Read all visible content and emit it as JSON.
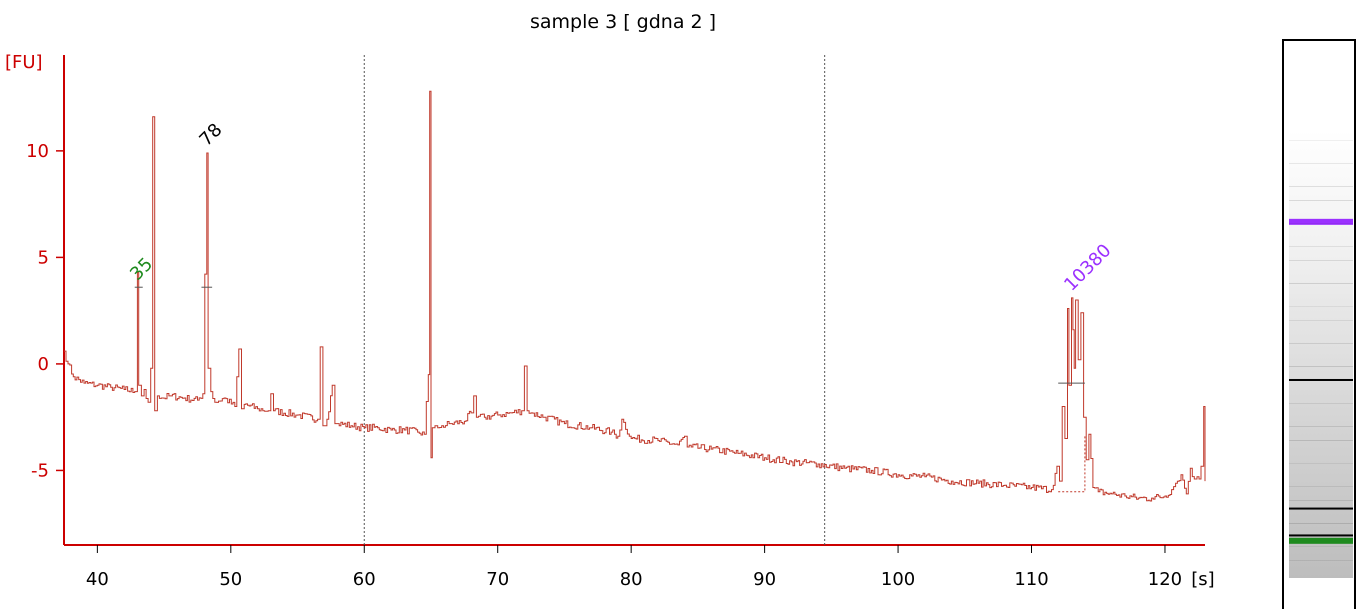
{
  "chart_data": {
    "type": "line",
    "title": "sample 3  [ gdna 2 ]",
    "ylabel": "[FU]",
    "xlabel": "[s]",
    "xlim": [
      37.5,
      123.0
    ],
    "ylim": [
      -8.5,
      14.5
    ],
    "x_ticks": [
      40,
      50,
      60,
      70,
      80,
      90,
      100,
      110,
      120
    ],
    "y_ticks": [
      10,
      5,
      0,
      -5
    ],
    "dotted_markers_x": [
      60,
      94.5
    ],
    "peak_labels": [
      {
        "text": "35",
        "x": 43.0,
        "y": 3.6,
        "color": "#1e8a1e"
      },
      {
        "text": "78",
        "x": 48.2,
        "y": 9.9,
        "color": "#000000"
      },
      {
        "text": "10380",
        "x": 113.0,
        "y": 3.1,
        "color": "#9b30ff"
      }
    ],
    "integration_marks": [
      {
        "x1": 42.8,
        "x2": 43.4,
        "y": 3.6
      },
      {
        "x1": 47.8,
        "x2": 48.6,
        "y": 3.6
      },
      {
        "x1": 112.0,
        "x2": 114.0,
        "y": -0.9
      }
    ],
    "baseline_region": {
      "x1": 112.0,
      "x2": 114.0,
      "y_low": -6.0,
      "y_high": -3.4
    },
    "series": [
      {
        "color": "#c0392b",
        "x": [
          37.5,
          37.8,
          38.2,
          39.0,
          40.0,
          41.0,
          42.0,
          42.8,
          43.0,
          43.1,
          43.3,
          43.5,
          43.8,
          44.0,
          44.15,
          44.3,
          44.5,
          44.8,
          45.5,
          46.5,
          47.5,
          47.9,
          48.2,
          48.3,
          48.5,
          48.8,
          49.5,
          50.3,
          50.6,
          50.8,
          51.0,
          52.0,
          52.8,
          53.0,
          53.2,
          55.0,
          56.5,
          56.7,
          56.9,
          57.2,
          57.6,
          57.8,
          58.0,
          59.0,
          60.0,
          61.0,
          62.0,
          63.0,
          64.0,
          64.5,
          64.8,
          64.9,
          65.0,
          65.1,
          65.3,
          65.5,
          65.8,
          66.5,
          67.5,
          68.0,
          68.2,
          68.4,
          69.0,
          70.0,
          71.0,
          71.8,
          72.0,
          72.2,
          72.5,
          73.5,
          75.0,
          77.0,
          78.5,
          79.0,
          79.3,
          80.0,
          82.0,
          83.5,
          84.0,
          84.2,
          84.5,
          86.0,
          88.0,
          90.0,
          92.0,
          94.0,
          96.0,
          98.0,
          100.0,
          102.0,
          104.0,
          106.0,
          108.0,
          110.0,
          111.5,
          111.9,
          112.1,
          112.3,
          112.5,
          112.7,
          112.8,
          113.0,
          113.1,
          113.2,
          113.3,
          113.5,
          113.7,
          113.9,
          114.1,
          114.3,
          114.6,
          115.0,
          116.0,
          117.0,
          118.0,
          119.0,
          120.0,
          120.5,
          120.8,
          121.2,
          121.6,
          121.9,
          122.2,
          122.4,
          122.55,
          122.7,
          122.9,
          123.0
        ],
        "y": [
          0.6,
          0.0,
          -0.6,
          -0.9,
          -1.0,
          -1.1,
          -1.2,
          -1.3,
          4.3,
          -1.0,
          -1.5,
          -1.2,
          -1.8,
          -0.2,
          11.6,
          -2.2,
          -1.5,
          -1.6,
          -1.5,
          -1.6,
          -1.7,
          -1.4,
          9.9,
          -0.2,
          -1.3,
          -1.8,
          -1.6,
          -2.0,
          0.7,
          -2.1,
          -1.9,
          -2.1,
          -2.2,
          -1.4,
          -2.2,
          -2.4,
          -2.6,
          0.8,
          -2.9,
          -2.6,
          -1.0,
          -2.8,
          -2.8,
          -2.9,
          -3.0,
          -3.0,
          -3.1,
          -3.1,
          -3.2,
          -3.3,
          -0.5,
          12.8,
          -4.4,
          -3.0,
          -2.9,
          -3.0,
          -2.9,
          -2.8,
          -2.7,
          -2.3,
          -1.5,
          -2.5,
          -2.5,
          -2.4,
          -2.3,
          -2.2,
          -0.1,
          -2.2,
          -2.3,
          -2.5,
          -2.8,
          -3.0,
          -3.2,
          -3.4,
          -2.6,
          -3.5,
          -3.6,
          -3.8,
          -3.4,
          -3.9,
          -3.9,
          -4.0,
          -4.2,
          -4.4,
          -4.6,
          -4.7,
          -4.9,
          -5.0,
          -5.2,
          -5.3,
          -5.5,
          -5.6,
          -5.7,
          -5.8,
          -5.9,
          -4.8,
          -5.5,
          -2.0,
          -3.5,
          2.6,
          -1.0,
          3.1,
          1.6,
          -0.2,
          3.0,
          0.2,
          2.4,
          -2.5,
          -4.5,
          -3.3,
          -5.8,
          -6.0,
          -6.1,
          -6.2,
          -6.3,
          -6.3,
          -6.2,
          -5.9,
          -5.6,
          -5.2,
          -6.1,
          -4.9,
          -5.4,
          -5.3,
          -5.4,
          -4.8,
          -2.0,
          -5.5
        ]
      }
    ]
  },
  "gel_lane": {
    "bands": [
      {
        "position": 0.205,
        "color": "#9b30ff",
        "thickness": 6
      },
      {
        "position": 0.558,
        "color": "#000000",
        "thickness": 2
      },
      {
        "position": 0.845,
        "color": "#000000",
        "thickness": 2
      },
      {
        "position": 0.905,
        "color": "#000000",
        "thickness": 2
      },
      {
        "position": 0.917,
        "color": "#1e8a1e",
        "thickness": 6
      }
    ]
  }
}
